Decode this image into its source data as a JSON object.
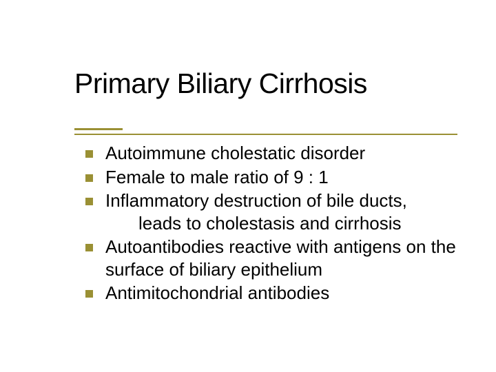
{
  "slide": {
    "title": "Primary Biliary Cirrhosis",
    "title_fontsize": 41,
    "title_color": "#000000",
    "accent_color": "#9a9034",
    "underline_short_width": 70,
    "body_fontsize": 26,
    "body_color": "#000000",
    "bullets": [
      {
        "text": "Autoimmune cholestatic disorder"
      },
      {
        "text": "Female to male ratio of 9 : 1"
      },
      {
        "text": "Inflammatory destruction of bile ducts,",
        "text2": "leads to cholestasis and cirrhosis"
      },
      {
        "text": "Autoantibodies reactive with antigens on the surface of biliary epithelium"
      },
      {
        "text": "Antimitochondrial antibodies"
      }
    ]
  }
}
